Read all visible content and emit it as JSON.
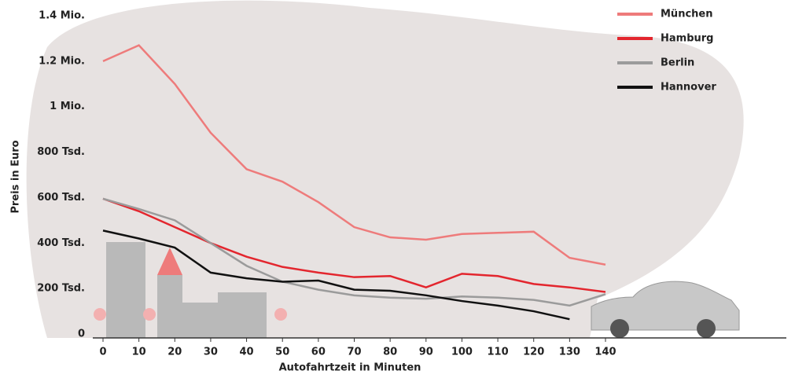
{
  "chart_data": {
    "type": "line",
    "x_label": "Autofahrtzeit in Minuten",
    "y_label": "Preis in Euro",
    "x": [
      0,
      10,
      20,
      30,
      40,
      50,
      60,
      70,
      80,
      90,
      100,
      110,
      120,
      130,
      140
    ],
    "xlim": [
      0,
      140
    ],
    "xticks": [
      0,
      10,
      20,
      30,
      40,
      50,
      60,
      70,
      80,
      90,
      100,
      110,
      120,
      130,
      140
    ],
    "ylim": [
      0,
      1400000
    ],
    "yticks": [
      0,
      {
        "value": 200000,
        "label": "200 Tsd."
      },
      {
        "value": 400000,
        "label": "400 Tsd."
      },
      {
        "value": 600000,
        "label": "600 Tsd."
      },
      {
        "value": 800000,
        "label": "800 Tsd."
      },
      {
        "value": 1000000,
        "label": "1 Mio."
      },
      {
        "value": 1200000,
        "label": "1.2 Mio."
      },
      {
        "value": 1400000,
        "label": "1.4 Mio."
      }
    ],
    "series": [
      {
        "name": "München",
        "color": "#ee7b7b",
        "values": [
          1200000,
          1270000,
          1100000,
          885000,
          725000,
          670000,
          580000,
          470000,
          425000,
          415000,
          440000,
          445000,
          450000,
          335000,
          305000
        ]
      },
      {
        "name": "Hamburg",
        "color": "#e3262e",
        "values": [
          595000,
          540000,
          470000,
          400000,
          340000,
          295000,
          270000,
          250000,
          255000,
          205000,
          265000,
          255000,
          220000,
          205000,
          185000
        ]
      },
      {
        "name": "Berlin",
        "color": "#9b9b9b",
        "values": [
          595000,
          550000,
          500000,
          400000,
          300000,
          230000,
          195000,
          170000,
          160000,
          155000,
          165000,
          160000,
          150000,
          125000,
          175000
        ]
      },
      {
        "name": "Hannover",
        "color": "#111111",
        "values": [
          455000,
          420000,
          380000,
          270000,
          245000,
          230000,
          235000,
          195000,
          190000,
          170000,
          145000,
          125000,
          100000,
          65000,
          null
        ]
      }
    ]
  }
}
